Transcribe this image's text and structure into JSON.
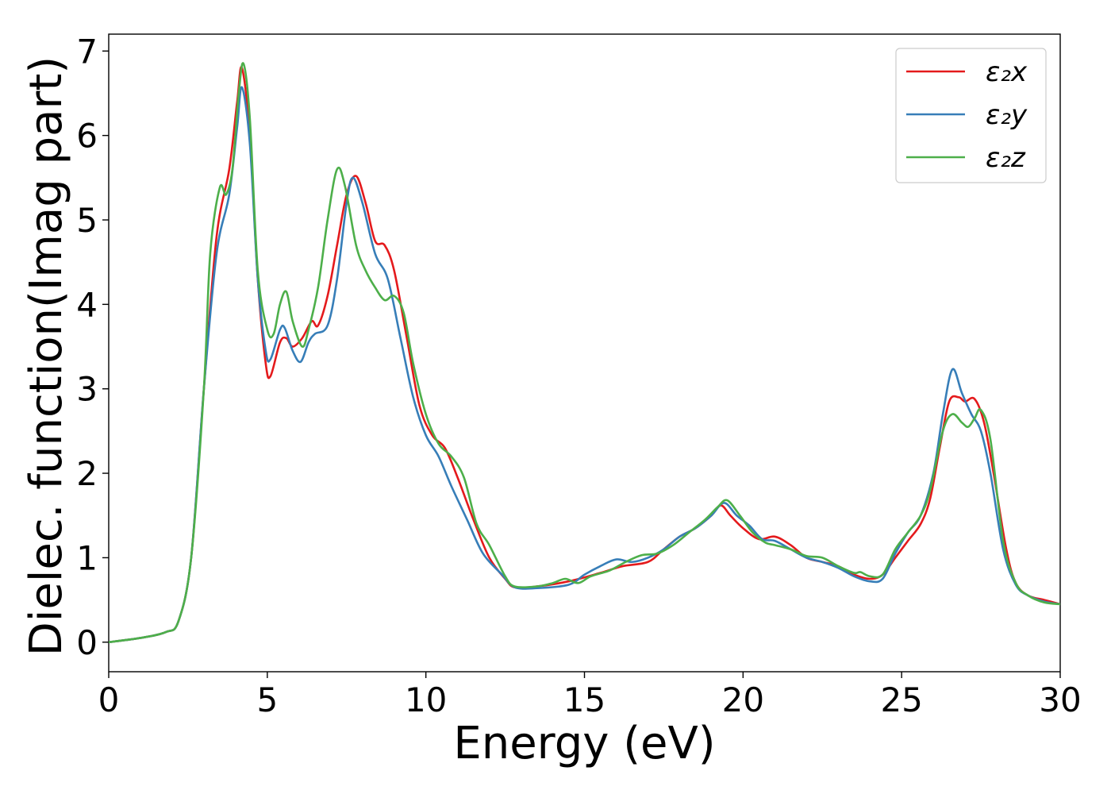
{
  "chart_data": {
    "type": "line",
    "title": "",
    "xlabel": "Energy (eV)",
    "ylabel": "Dielec. function(Imag part)",
    "xlim": [
      0,
      30
    ],
    "ylim": [
      -0.35,
      7.2
    ],
    "xticks": [
      0,
      5,
      10,
      15,
      20,
      25,
      30
    ],
    "yticks": [
      0,
      1,
      2,
      3,
      4,
      5,
      6,
      7
    ],
    "grid": false,
    "legend_position": "top-right",
    "series": [
      {
        "name": "ε₂x",
        "color": "#e41a1c",
        "points": [
          [
            0,
            0
          ],
          [
            1,
            0.05
          ],
          [
            1.8,
            0.12
          ],
          [
            2.2,
            0.25
          ],
          [
            2.6,
            1.0
          ],
          [
            3.0,
            3.0
          ],
          [
            3.4,
            4.8
          ],
          [
            3.8,
            5.6
          ],
          [
            4.05,
            6.4
          ],
          [
            4.2,
            6.8
          ],
          [
            4.45,
            6.0
          ],
          [
            4.7,
            4.3
          ],
          [
            4.95,
            3.3
          ],
          [
            5.1,
            3.15
          ],
          [
            5.4,
            3.55
          ],
          [
            5.6,
            3.6
          ],
          [
            5.8,
            3.5
          ],
          [
            6.1,
            3.6
          ],
          [
            6.4,
            3.8
          ],
          [
            6.6,
            3.75
          ],
          [
            6.9,
            4.1
          ],
          [
            7.2,
            4.7
          ],
          [
            7.5,
            5.3
          ],
          [
            7.8,
            5.52
          ],
          [
            8.1,
            5.2
          ],
          [
            8.4,
            4.75
          ],
          [
            8.7,
            4.7
          ],
          [
            9.0,
            4.4
          ],
          [
            9.4,
            3.6
          ],
          [
            9.8,
            2.8
          ],
          [
            10.2,
            2.45
          ],
          [
            10.6,
            2.3
          ],
          [
            11.0,
            1.95
          ],
          [
            11.5,
            1.45
          ],
          [
            12.0,
            1.0
          ],
          [
            12.5,
            0.75
          ],
          [
            12.8,
            0.65
          ],
          [
            13.5,
            0.66
          ],
          [
            14.5,
            0.72
          ],
          [
            15.5,
            0.82
          ],
          [
            16.2,
            0.9
          ],
          [
            17.0,
            0.95
          ],
          [
            17.5,
            1.1
          ],
          [
            18.0,
            1.25
          ],
          [
            18.5,
            1.35
          ],
          [
            19.0,
            1.5
          ],
          [
            19.3,
            1.62
          ],
          [
            19.6,
            1.5
          ],
          [
            20.0,
            1.35
          ],
          [
            20.5,
            1.22
          ],
          [
            21.0,
            1.25
          ],
          [
            21.5,
            1.15
          ],
          [
            22.0,
            1.0
          ],
          [
            22.5,
            0.95
          ],
          [
            23.0,
            0.9
          ],
          [
            23.5,
            0.8
          ],
          [
            24.0,
            0.75
          ],
          [
            24.4,
            0.8
          ],
          [
            24.8,
            1.0
          ],
          [
            25.2,
            1.2
          ],
          [
            25.6,
            1.4
          ],
          [
            25.9,
            1.7
          ],
          [
            26.2,
            2.3
          ],
          [
            26.5,
            2.85
          ],
          [
            26.8,
            2.9
          ],
          [
            27.0,
            2.85
          ],
          [
            27.3,
            2.88
          ],
          [
            27.6,
            2.6
          ],
          [
            27.9,
            2.0
          ],
          [
            28.3,
            1.1
          ],
          [
            28.6,
            0.7
          ],
          [
            29.0,
            0.55
          ],
          [
            29.5,
            0.5
          ],
          [
            30.0,
            0.45
          ]
        ]
      },
      {
        "name": "ε₂y",
        "color": "#377eb8",
        "points": [
          [
            0,
            0
          ],
          [
            1,
            0.05
          ],
          [
            1.8,
            0.12
          ],
          [
            2.2,
            0.25
          ],
          [
            2.6,
            1.0
          ],
          [
            3.0,
            3.0
          ],
          [
            3.4,
            4.6
          ],
          [
            3.8,
            5.3
          ],
          [
            4.05,
            6.1
          ],
          [
            4.2,
            6.57
          ],
          [
            4.45,
            5.9
          ],
          [
            4.7,
            4.3
          ],
          [
            4.95,
            3.45
          ],
          [
            5.1,
            3.35
          ],
          [
            5.4,
            3.7
          ],
          [
            5.55,
            3.72
          ],
          [
            5.8,
            3.45
          ],
          [
            6.05,
            3.32
          ],
          [
            6.3,
            3.55
          ],
          [
            6.5,
            3.65
          ],
          [
            6.9,
            3.75
          ],
          [
            7.2,
            4.3
          ],
          [
            7.5,
            5.2
          ],
          [
            7.7,
            5.5
          ],
          [
            8.0,
            5.2
          ],
          [
            8.4,
            4.6
          ],
          [
            8.8,
            4.3
          ],
          [
            9.2,
            3.6
          ],
          [
            9.6,
            2.9
          ],
          [
            10.0,
            2.45
          ],
          [
            10.4,
            2.2
          ],
          [
            10.8,
            1.85
          ],
          [
            11.3,
            1.45
          ],
          [
            11.8,
            1.05
          ],
          [
            12.4,
            0.8
          ],
          [
            12.8,
            0.65
          ],
          [
            13.5,
            0.64
          ],
          [
            14.5,
            0.68
          ],
          [
            15.0,
            0.8
          ],
          [
            15.5,
            0.9
          ],
          [
            16.0,
            0.98
          ],
          [
            16.5,
            0.95
          ],
          [
            17.0,
            1.0
          ],
          [
            17.5,
            1.1
          ],
          [
            18.0,
            1.25
          ],
          [
            18.5,
            1.35
          ],
          [
            19.0,
            1.5
          ],
          [
            19.4,
            1.65
          ],
          [
            19.8,
            1.5
          ],
          [
            20.2,
            1.38
          ],
          [
            20.6,
            1.22
          ],
          [
            21.0,
            1.2
          ],
          [
            21.5,
            1.1
          ],
          [
            22.0,
            1.0
          ],
          [
            22.5,
            0.95
          ],
          [
            23.0,
            0.88
          ],
          [
            23.5,
            0.78
          ],
          [
            24.0,
            0.72
          ],
          [
            24.4,
            0.75
          ],
          [
            24.8,
            1.05
          ],
          [
            25.2,
            1.3
          ],
          [
            25.6,
            1.5
          ],
          [
            26.0,
            2.0
          ],
          [
            26.3,
            2.7
          ],
          [
            26.6,
            3.23
          ],
          [
            26.9,
            2.95
          ],
          [
            27.2,
            2.7
          ],
          [
            27.5,
            2.5
          ],
          [
            27.8,
            2.0
          ],
          [
            28.2,
            1.1
          ],
          [
            28.6,
            0.68
          ],
          [
            29.0,
            0.55
          ],
          [
            29.5,
            0.48
          ],
          [
            30.0,
            0.45
          ]
        ]
      },
      {
        "name": "ε₂z",
        "color": "#4daf4a",
        "points": [
          [
            0,
            0
          ],
          [
            1,
            0.05
          ],
          [
            1.8,
            0.12
          ],
          [
            2.2,
            0.25
          ],
          [
            2.6,
            1.0
          ],
          [
            3.0,
            3.0
          ],
          [
            3.2,
            4.6
          ],
          [
            3.5,
            5.38
          ],
          [
            3.7,
            5.3
          ],
          [
            3.9,
            5.6
          ],
          [
            4.1,
            6.5
          ],
          [
            4.25,
            6.85
          ],
          [
            4.45,
            6.2
          ],
          [
            4.7,
            4.4
          ],
          [
            5.0,
            3.7
          ],
          [
            5.2,
            3.65
          ],
          [
            5.4,
            4.0
          ],
          [
            5.6,
            4.15
          ],
          [
            5.8,
            3.8
          ],
          [
            6.1,
            3.5
          ],
          [
            6.3,
            3.7
          ],
          [
            6.6,
            4.2
          ],
          [
            6.9,
            5.0
          ],
          [
            7.2,
            5.6
          ],
          [
            7.45,
            5.4
          ],
          [
            7.8,
            4.7
          ],
          [
            8.1,
            4.4
          ],
          [
            8.4,
            4.2
          ],
          [
            8.7,
            4.05
          ],
          [
            9.0,
            4.1
          ],
          [
            9.3,
            3.9
          ],
          [
            9.6,
            3.3
          ],
          [
            10.0,
            2.7
          ],
          [
            10.4,
            2.35
          ],
          [
            10.8,
            2.2
          ],
          [
            11.2,
            1.95
          ],
          [
            11.6,
            1.4
          ],
          [
            12.0,
            1.15
          ],
          [
            12.5,
            0.78
          ],
          [
            12.8,
            0.66
          ],
          [
            13.5,
            0.66
          ],
          [
            14.0,
            0.7
          ],
          [
            14.4,
            0.75
          ],
          [
            14.8,
            0.7
          ],
          [
            15.2,
            0.78
          ],
          [
            15.8,
            0.85
          ],
          [
            16.3,
            0.95
          ],
          [
            16.8,
            1.03
          ],
          [
            17.3,
            1.05
          ],
          [
            17.8,
            1.15
          ],
          [
            18.3,
            1.3
          ],
          [
            18.8,
            1.45
          ],
          [
            19.2,
            1.6
          ],
          [
            19.5,
            1.68
          ],
          [
            19.9,
            1.5
          ],
          [
            20.3,
            1.3
          ],
          [
            20.7,
            1.18
          ],
          [
            21.0,
            1.15
          ],
          [
            21.5,
            1.1
          ],
          [
            22.0,
            1.02
          ],
          [
            22.5,
            1.0
          ],
          [
            23.0,
            0.9
          ],
          [
            23.5,
            0.82
          ],
          [
            23.7,
            0.83
          ],
          [
            24.0,
            0.78
          ],
          [
            24.4,
            0.8
          ],
          [
            24.8,
            1.1
          ],
          [
            25.2,
            1.3
          ],
          [
            25.6,
            1.5
          ],
          [
            25.9,
            1.8
          ],
          [
            26.3,
            2.5
          ],
          [
            26.6,
            2.7
          ],
          [
            26.9,
            2.6
          ],
          [
            27.1,
            2.55
          ],
          [
            27.3,
            2.65
          ],
          [
            27.5,
            2.75
          ],
          [
            27.8,
            2.4
          ],
          [
            28.2,
            1.2
          ],
          [
            28.6,
            0.7
          ],
          [
            29.0,
            0.55
          ],
          [
            29.5,
            0.47
          ],
          [
            30.0,
            0.45
          ]
        ]
      }
    ]
  }
}
